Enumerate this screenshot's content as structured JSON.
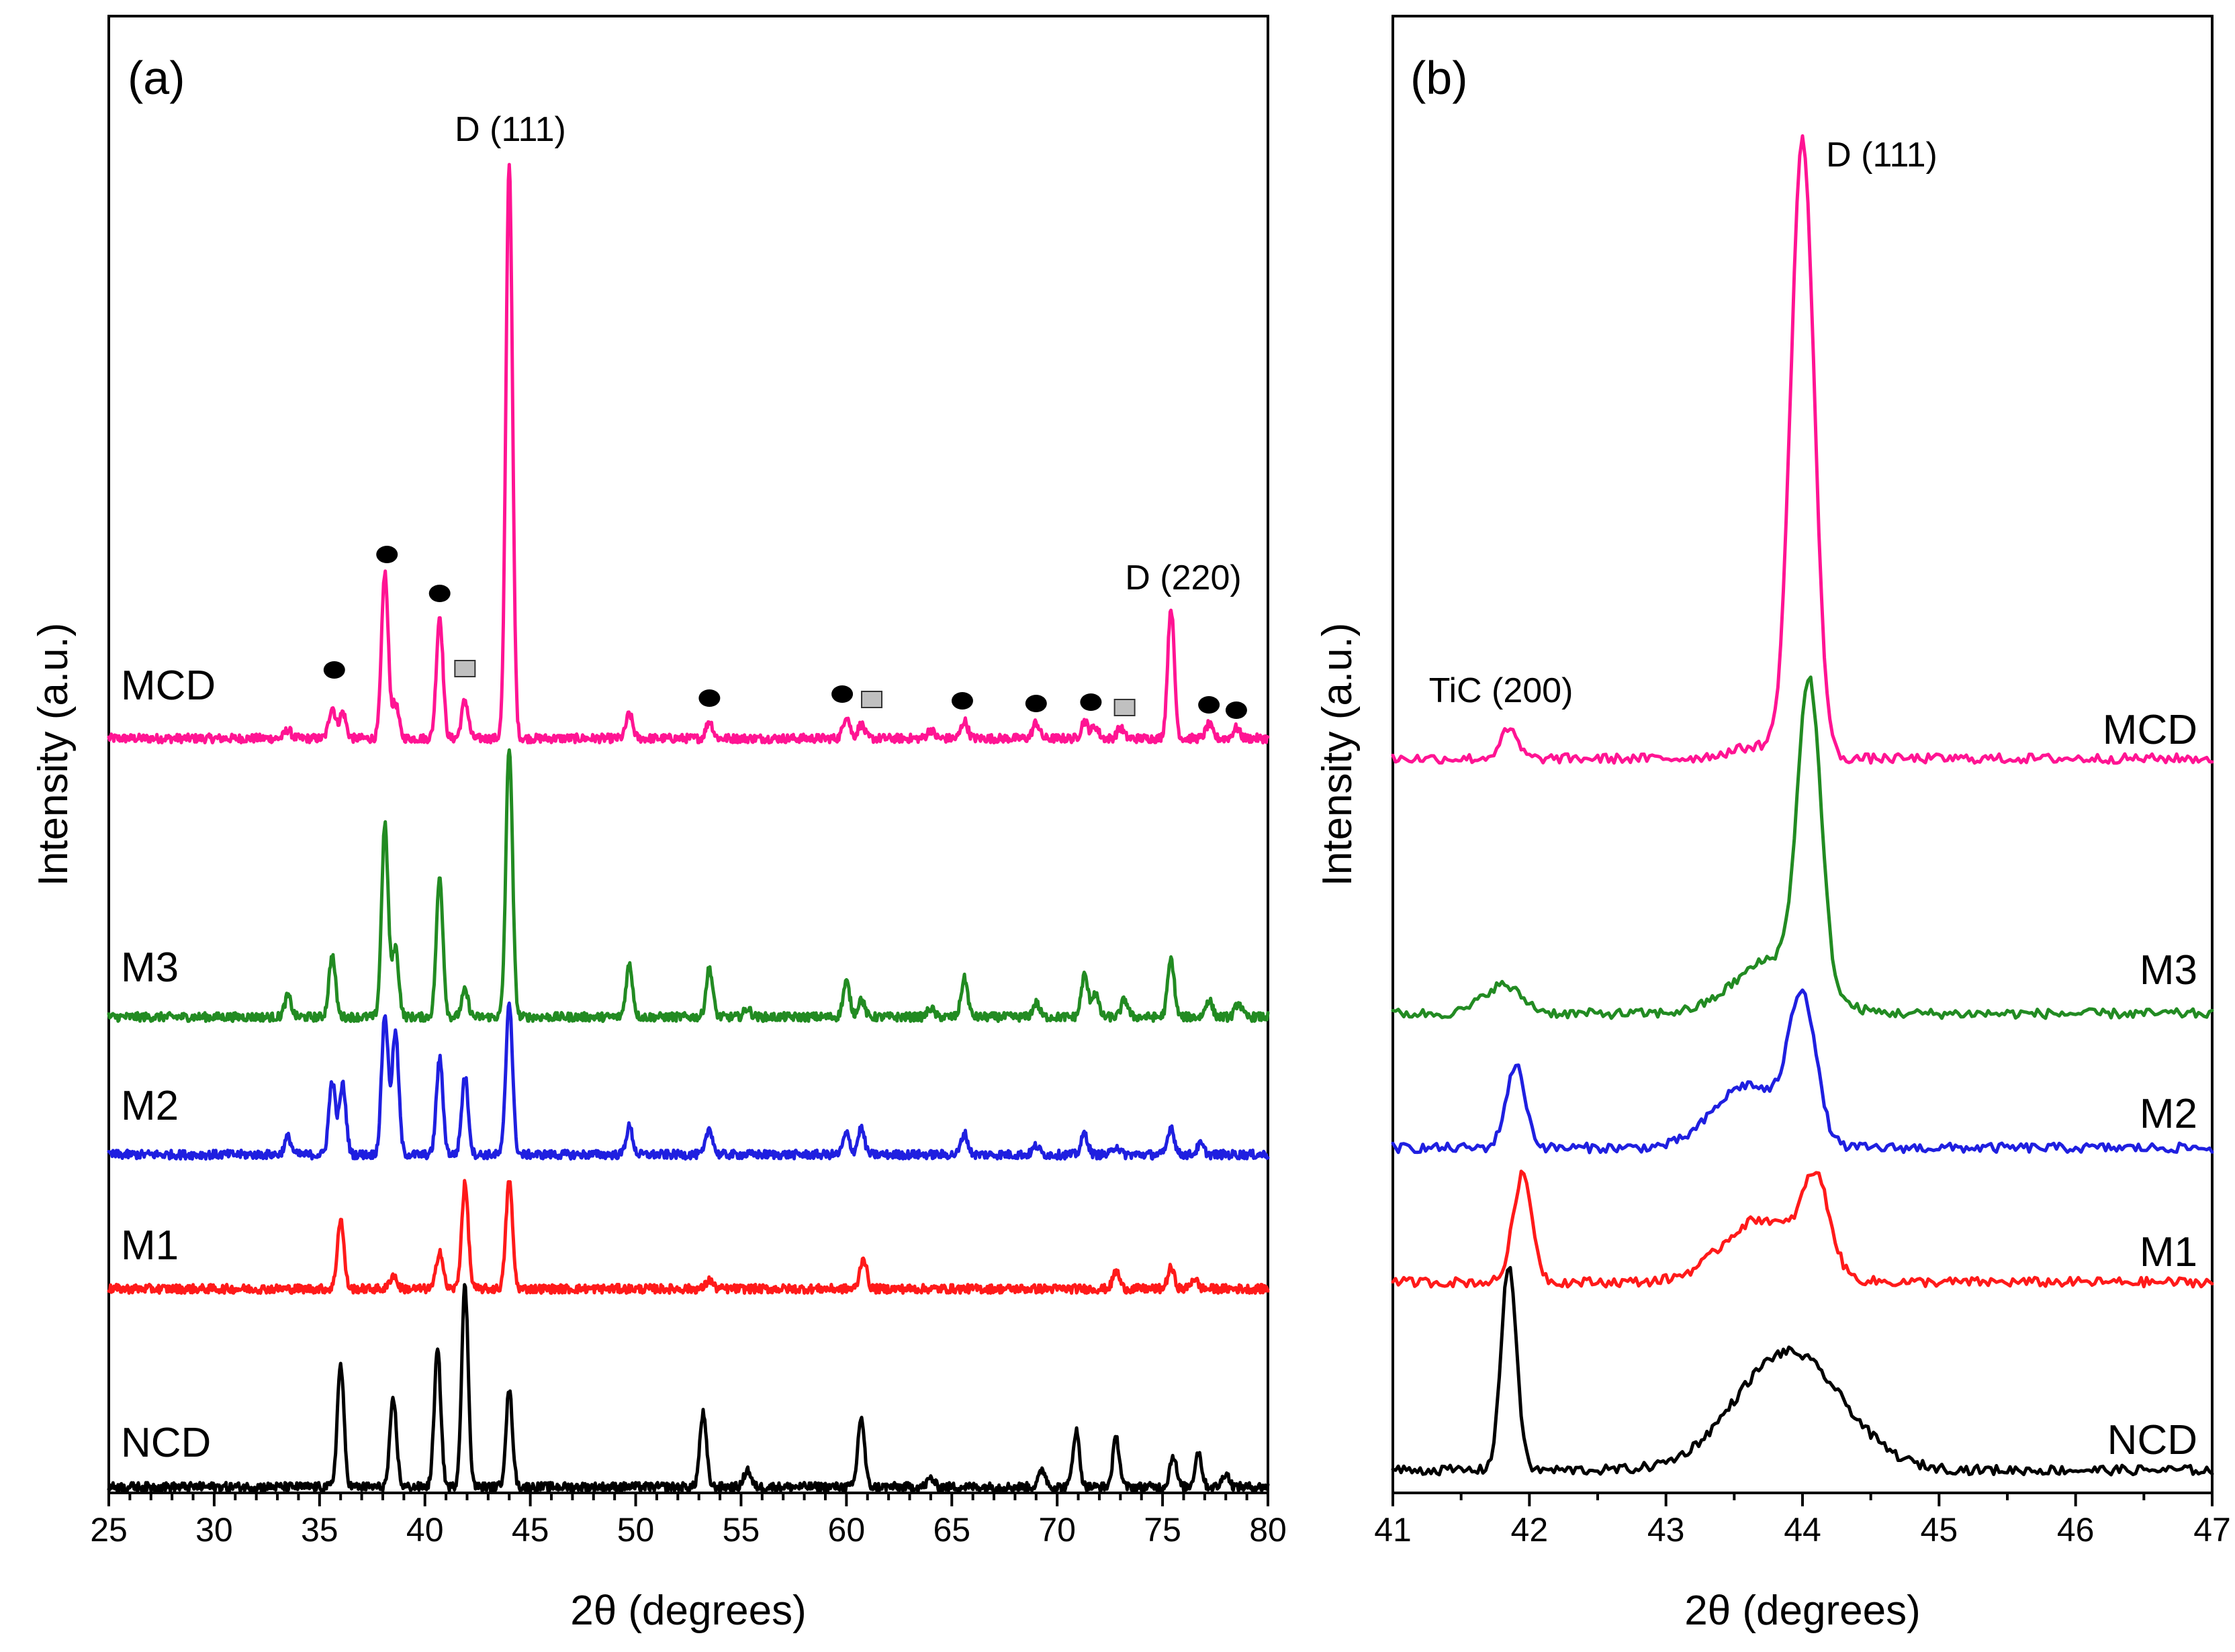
{
  "colors": {
    "MCD": "#ff1493",
    "M3": "#228b22",
    "M2": "#1f1fe0",
    "M1": "#ff1a1a",
    "NCD": "#000000",
    "square_fill": "#c0c0c0"
  },
  "chart_data": [
    {
      "type": "line",
      "panel_label": "(a)",
      "xlabel": "2θ (degrees)",
      "ylabel": "Intensity (a.u.)",
      "xlim": [
        25,
        80
      ],
      "xticks": [
        25,
        30,
        35,
        40,
        45,
        50,
        55,
        60,
        65,
        70,
        75,
        80
      ],
      "grid": false,
      "annotations": [
        "D (111)",
        "D (220)"
      ],
      "marker_legend": {
        "circle_positions": [
          35.7,
          38.2,
          40.7,
          53.5,
          59.8,
          65.5,
          69.0,
          71.6,
          77.2,
          78.5
        ],
        "square_positions": [
          41.9,
          61.2,
          73.2
        ]
      },
      "series": [
        {
          "name": "MCD",
          "baseline": 100,
          "peaks": [
            [
              33.5,
              5
            ],
            [
              35.6,
              18
            ],
            [
              36.1,
              15
            ],
            [
              38.1,
              95
            ],
            [
              38.6,
              20
            ],
            [
              40.7,
              70
            ],
            [
              41.9,
              22
            ],
            [
              44.0,
              330
            ],
            [
              49.7,
              14
            ],
            [
              53.5,
              10
            ],
            [
              60.0,
              13
            ],
            [
              60.7,
              8
            ],
            [
              64.0,
              5
            ],
            [
              65.6,
              10
            ],
            [
              69.0,
              9
            ],
            [
              71.3,
              10
            ],
            [
              71.8,
              7
            ],
            [
              73.0,
              6
            ],
            [
              75.4,
              75
            ],
            [
              77.2,
              8
            ],
            [
              78.5,
              6
            ]
          ]
        },
        {
          "name": "M3",
          "baseline": 100,
          "peaks": [
            [
              33.5,
              12
            ],
            [
              35.6,
              35
            ],
            [
              38.1,
              110
            ],
            [
              38.6,
              40
            ],
            [
              40.7,
              80
            ],
            [
              41.9,
              15
            ],
            [
              44.0,
              155
            ],
            [
              49.7,
              30
            ],
            [
              53.5,
              28
            ],
            [
              55.3,
              5
            ],
            [
              60.0,
              20
            ],
            [
              60.7,
              10
            ],
            [
              64.0,
              5
            ],
            [
              65.6,
              22
            ],
            [
              69.0,
              8
            ],
            [
              71.3,
              24
            ],
            [
              71.8,
              14
            ],
            [
              73.2,
              10
            ],
            [
              75.4,
              33
            ],
            [
              77.2,
              10
            ],
            [
              78.6,
              8
            ]
          ]
        },
        {
          "name": "M2",
          "baseline": 100,
          "peaks": [
            [
              33.5,
              10
            ],
            [
              35.6,
              42
            ],
            [
              36.1,
              40
            ],
            [
              38.1,
              80
            ],
            [
              38.6,
              70
            ],
            [
              40.7,
              55
            ],
            [
              41.9,
              45
            ],
            [
              44.0,
              88
            ],
            [
              49.7,
              16
            ],
            [
              53.5,
              15
            ],
            [
              60.0,
              12
            ],
            [
              60.7,
              15
            ],
            [
              65.6,
              12
            ],
            [
              69.0,
              5
            ],
            [
              71.3,
              12
            ],
            [
              72.8,
              5
            ],
            [
              75.4,
              16
            ],
            [
              76.8,
              6
            ]
          ]
        },
        {
          "name": "M1",
          "baseline": 100,
          "peaks": [
            [
              36.0,
              40
            ],
            [
              38.5,
              8
            ],
            [
              40.7,
              22
            ],
            [
              41.9,
              60
            ],
            [
              44.0,
              62
            ],
            [
              53.5,
              5
            ],
            [
              60.8,
              18
            ],
            [
              72.8,
              10
            ],
            [
              75.4,
              12
            ],
            [
              76.5,
              6
            ]
          ]
        },
        {
          "name": "NCD",
          "baseline": 100,
          "peaks": [
            [
              36.0,
              70
            ],
            [
              38.5,
              50
            ],
            [
              40.6,
              78
            ],
            [
              41.9,
              115
            ],
            [
              44.0,
              55
            ],
            [
              53.2,
              42
            ],
            [
              55.3,
              10
            ],
            [
              60.7,
              40
            ],
            [
              64.0,
              5
            ],
            [
              69.3,
              10
            ],
            [
              70.9,
              32
            ],
            [
              72.8,
              28
            ],
            [
              75.5,
              18
            ],
            [
              76.7,
              20
            ],
            [
              78.0,
              8
            ]
          ]
        }
      ]
    },
    {
      "type": "line",
      "panel_label": "(b)",
      "xlabel": "2θ (degrees)",
      "ylabel": "Intensity (a.u.)",
      "xlim": [
        41,
        47
      ],
      "xticks": [
        41,
        42,
        43,
        44,
        45,
        46,
        47
      ],
      "grid": false,
      "annotations": [
        "D (111)",
        "TiC (200)"
      ],
      "series": [
        {
          "name": "MCD",
          "baseline": 100,
          "peaks": [
            [
              41.85,
              18,
              0.09
            ],
            [
              44.0,
              390,
              0.12
            ],
            [
              43.7,
              8,
              0.3
            ]
          ]
        },
        {
          "name": "M3",
          "baseline": 100,
          "peaks": [
            [
              41.8,
              18,
              0.2
            ],
            [
              43.8,
              35,
              0.4
            ],
            [
              44.05,
              190,
              0.12
            ]
          ]
        },
        {
          "name": "M2",
          "baseline": 100,
          "peaks": [
            [
              41.9,
              52,
              0.1
            ],
            [
              43.6,
              40,
              0.35
            ],
            [
              44.0,
              90,
              0.14
            ]
          ]
        },
        {
          "name": "M1",
          "baseline": 100,
          "peaks": [
            [
              41.95,
              68,
              0.1
            ],
            [
              43.7,
              40,
              0.4
            ],
            [
              44.1,
              55,
              0.14
            ]
          ]
        },
        {
          "name": "NCD",
          "baseline": 100,
          "peaks": [
            [
              41.85,
              130,
              0.08
            ],
            [
              43.9,
              75,
              0.55
            ]
          ]
        }
      ]
    }
  ]
}
